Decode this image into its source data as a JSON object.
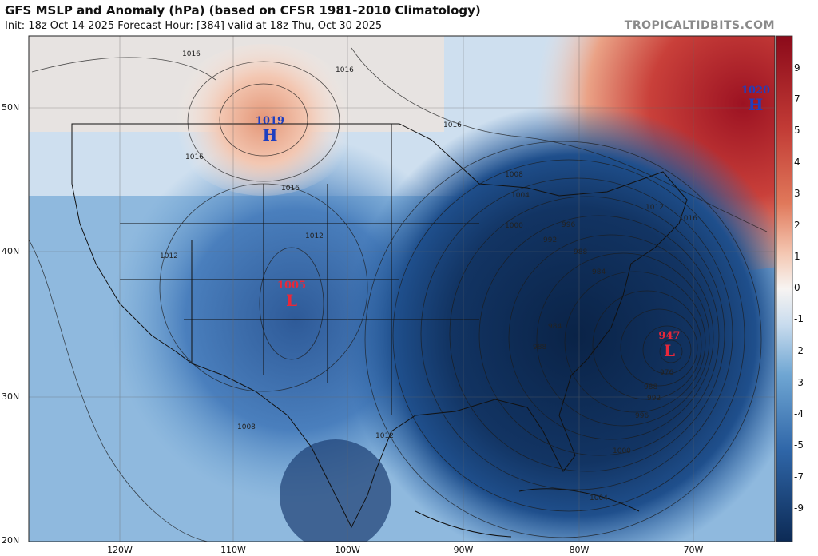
{
  "header": {
    "title": "GFS MSLP and Anomaly (hPa) (based on CFSR 1981-2010 Climatology)",
    "subtitle": "Init: 18z Oct 14 2025   Forecast Hour: [384]   valid at 18z Thu, Oct 30 2025",
    "credit": "TROPICALTIDBITS.COM"
  },
  "axes": {
    "lat_labels": [
      "50N",
      "40N",
      "30N",
      "20N"
    ],
    "lon_labels": [
      "120W",
      "110W",
      "100W",
      "90W",
      "80W",
      "70W"
    ]
  },
  "colorbar": {
    "labels": [
      "9",
      "7",
      "5",
      "4",
      "3",
      "2",
      "1",
      "0",
      "-1",
      "-2",
      "-3",
      "-4",
      "-5",
      "-7",
      "-9"
    ],
    "colors": {
      "strong_positive": "#8b0a1a",
      "positive": "#e0785a",
      "neutral": "#f7f4f2",
      "negative": "#6fa6d3",
      "strong_negative": "#0c2a55"
    }
  },
  "pressure_centers": [
    {
      "type": "H",
      "value": "1019",
      "color": "#1f3fbf"
    },
    {
      "type": "H",
      "value": "1020",
      "color": "#1f3fbf"
    },
    {
      "type": "L",
      "value": "1005",
      "color": "#e8283a"
    },
    {
      "type": "L",
      "value": "947",
      "color": "#e8283a"
    }
  ],
  "isobar_labels": [
    "1016",
    "1016",
    "1016",
    "1016",
    "1016",
    "1016",
    "1012",
    "1012",
    "1012",
    "1012",
    "1008",
    "1008",
    "1004",
    "1000",
    "1000",
    "996",
    "996",
    "992",
    "992",
    "988",
    "988",
    "988",
    "984",
    "984",
    "976",
    "1004"
  ]
}
